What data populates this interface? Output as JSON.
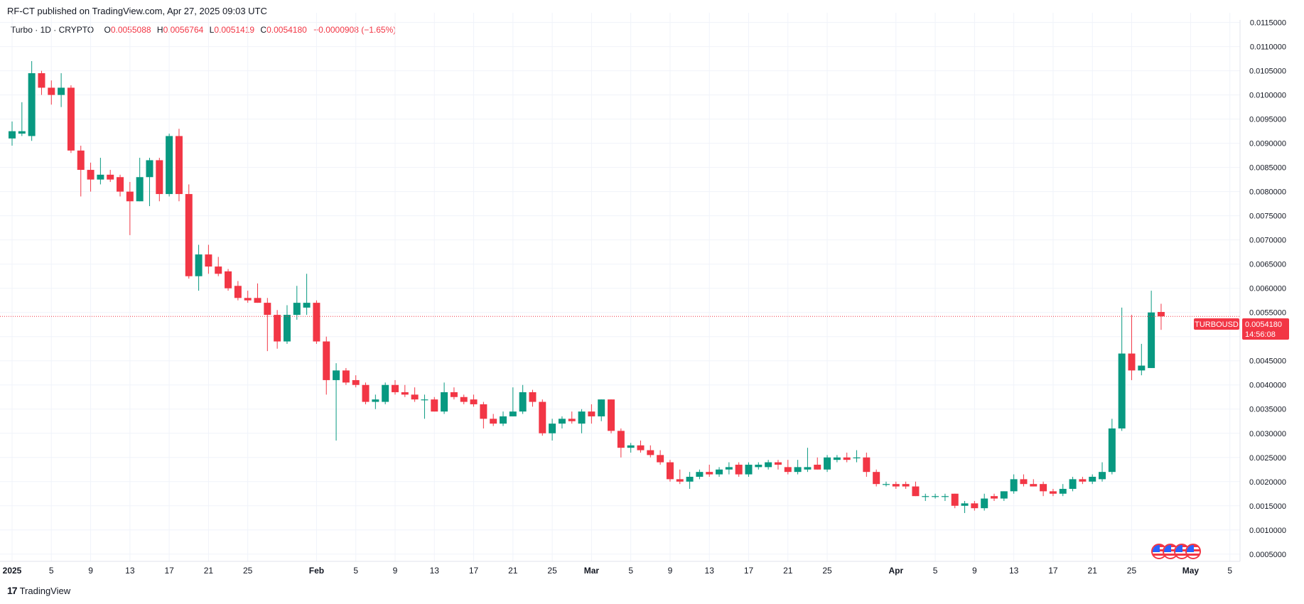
{
  "header": {
    "published": "RF-CT published on TradingView.com, Apr 27, 2025 09:03 UTC"
  },
  "legend": {
    "symbol": "Turbo · 1D · CRYPTO",
    "o_label": "O",
    "o_value": "0.0055088",
    "h_label": "H",
    "h_value": "0.0056764",
    "l_label": "L",
    "l_value": "0.0051419",
    "c_label": "C",
    "c_value": "0.0054180",
    "change": "−0.0000908 (−1.65%)"
  },
  "price_tag": {
    "ticker": "TURBOUSD",
    "price": "0.0054180",
    "countdown": "14:56:08"
  },
  "footer": {
    "brand": "TradingView",
    "logo_text": "17"
  },
  "colors": {
    "up": "#089981",
    "down": "#f23645",
    "grid": "#f0f3fa",
    "last_line": "#f23645"
  },
  "chart_data": {
    "type": "candlestick",
    "y_ticks": [
      "0.0115000",
      "0.0110000",
      "0.0105000",
      "0.0100000",
      "0.0095000",
      "0.0090000",
      "0.0085000",
      "0.0080000",
      "0.0075000",
      "0.0070000",
      "0.0065000",
      "0.0060000",
      "0.0055000",
      "0.0050000",
      "0.0045000",
      "0.0040000",
      "0.0035000",
      "0.0030000",
      "0.0025000",
      "0.0020000",
      "0.0015000",
      "0.0010000",
      "0.0005000"
    ],
    "ylim": [
      0.00035,
      0.0117
    ],
    "x_ticks": [
      {
        "label": "2025",
        "day": 0,
        "bold": true
      },
      {
        "label": "5",
        "day": 4
      },
      {
        "label": "9",
        "day": 8
      },
      {
        "label": "13",
        "day": 12
      },
      {
        "label": "17",
        "day": 16
      },
      {
        "label": "21",
        "day": 20
      },
      {
        "label": "25",
        "day": 24
      },
      {
        "label": "Feb",
        "day": 31,
        "bold": true
      },
      {
        "label": "5",
        "day": 35
      },
      {
        "label": "9",
        "day": 39
      },
      {
        "label": "13",
        "day": 43
      },
      {
        "label": "17",
        "day": 47
      },
      {
        "label": "21",
        "day": 51
      },
      {
        "label": "25",
        "day": 55
      },
      {
        "label": "Mar",
        "day": 59,
        "bold": true
      },
      {
        "label": "5",
        "day": 63
      },
      {
        "label": "9",
        "day": 67
      },
      {
        "label": "13",
        "day": 71
      },
      {
        "label": "17",
        "day": 75
      },
      {
        "label": "21",
        "day": 79
      },
      {
        "label": "25",
        "day": 83
      },
      {
        "label": "Apr",
        "day": 90,
        "bold": true
      },
      {
        "label": "5",
        "day": 94
      },
      {
        "label": "9",
        "day": 98
      },
      {
        "label": "13",
        "day": 102
      },
      {
        "label": "17",
        "day": 106
      },
      {
        "label": "21",
        "day": 110
      },
      {
        "label": "25",
        "day": 114
      },
      {
        "label": "May",
        "day": 120,
        "bold": true
      },
      {
        "label": "5",
        "day": 124
      }
    ],
    "last_price": 0.005418,
    "candles": [
      {
        "o": 0.0091,
        "h": 0.00945,
        "l": 0.00895,
        "c": 0.00925
      },
      {
        "o": 0.0092,
        "h": 0.00985,
        "l": 0.00915,
        "c": 0.00925
      },
      {
        "o": 0.00915,
        "h": 0.0107,
        "l": 0.00905,
        "c": 0.01045
      },
      {
        "o": 0.01045,
        "h": 0.0105,
        "l": 0.01,
        "c": 0.01015
      },
      {
        "o": 0.01015,
        "h": 0.0103,
        "l": 0.0098,
        "c": 0.01
      },
      {
        "o": 0.01,
        "h": 0.01045,
        "l": 0.00975,
        "c": 0.01015
      },
      {
        "o": 0.01015,
        "h": 0.0102,
        "l": 0.0088,
        "c": 0.00885
      },
      {
        "o": 0.00885,
        "h": 0.00895,
        "l": 0.0079,
        "c": 0.00845
      },
      {
        "o": 0.00845,
        "h": 0.0086,
        "l": 0.008,
        "c": 0.00825
      },
      {
        "o": 0.00825,
        "h": 0.0087,
        "l": 0.00815,
        "c": 0.00835
      },
      {
        "o": 0.00835,
        "h": 0.00845,
        "l": 0.0082,
        "c": 0.00825
      },
      {
        "o": 0.0083,
        "h": 0.00835,
        "l": 0.0079,
        "c": 0.008
      },
      {
        "o": 0.008,
        "h": 0.0082,
        "l": 0.0071,
        "c": 0.0078
      },
      {
        "o": 0.0078,
        "h": 0.0087,
        "l": 0.0078,
        "c": 0.0083
      },
      {
        "o": 0.0083,
        "h": 0.0087,
        "l": 0.0077,
        "c": 0.00865
      },
      {
        "o": 0.00865,
        "h": 0.0087,
        "l": 0.0078,
        "c": 0.00795
      },
      {
        "o": 0.00795,
        "h": 0.0092,
        "l": 0.0079,
        "c": 0.00915
      },
      {
        "o": 0.00915,
        "h": 0.0093,
        "l": 0.0078,
        "c": 0.00795
      },
      {
        "o": 0.00795,
        "h": 0.00815,
        "l": 0.0062,
        "c": 0.00625
      },
      {
        "o": 0.00625,
        "h": 0.0069,
        "l": 0.00595,
        "c": 0.0067
      },
      {
        "o": 0.0067,
        "h": 0.0069,
        "l": 0.0063,
        "c": 0.00645
      },
      {
        "o": 0.00645,
        "h": 0.00665,
        "l": 0.00625,
        "c": 0.0063
      },
      {
        "o": 0.00635,
        "h": 0.0064,
        "l": 0.00595,
        "c": 0.006
      },
      {
        "o": 0.00605,
        "h": 0.00615,
        "l": 0.00575,
        "c": 0.0058
      },
      {
        "o": 0.0058,
        "h": 0.00595,
        "l": 0.0057,
        "c": 0.00575
      },
      {
        "o": 0.0058,
        "h": 0.0061,
        "l": 0.0057,
        "c": 0.0057
      },
      {
        "o": 0.0057,
        "h": 0.0058,
        "l": 0.0047,
        "c": 0.00545
      },
      {
        "o": 0.00545,
        "h": 0.00555,
        "l": 0.00475,
        "c": 0.0049
      },
      {
        "o": 0.0049,
        "h": 0.00565,
        "l": 0.00485,
        "c": 0.00545
      },
      {
        "o": 0.00545,
        "h": 0.00605,
        "l": 0.00535,
        "c": 0.0057
      },
      {
        "o": 0.0056,
        "h": 0.0063,
        "l": 0.00545,
        "c": 0.0057
      },
      {
        "o": 0.0057,
        "h": 0.00575,
        "l": 0.00485,
        "c": 0.0049
      },
      {
        "o": 0.0049,
        "h": 0.005,
        "l": 0.0038,
        "c": 0.0041
      },
      {
        "o": 0.0041,
        "h": 0.00445,
        "l": 0.00285,
        "c": 0.0043
      },
      {
        "o": 0.0043,
        "h": 0.00435,
        "l": 0.004,
        "c": 0.00405
      },
      {
        "o": 0.0041,
        "h": 0.0042,
        "l": 0.00395,
        "c": 0.004
      },
      {
        "o": 0.004,
        "h": 0.00405,
        "l": 0.0036,
        "c": 0.00365
      },
      {
        "o": 0.00365,
        "h": 0.0038,
        "l": 0.0035,
        "c": 0.0037
      },
      {
        "o": 0.00365,
        "h": 0.00405,
        "l": 0.0036,
        "c": 0.004
      },
      {
        "o": 0.004,
        "h": 0.0041,
        "l": 0.0038,
        "c": 0.00385
      },
      {
        "o": 0.00385,
        "h": 0.004,
        "l": 0.00375,
        "c": 0.0038
      },
      {
        "o": 0.0038,
        "h": 0.00395,
        "l": 0.00365,
        "c": 0.0037
      },
      {
        "o": 0.0037,
        "h": 0.0038,
        "l": 0.0033,
        "c": 0.0037
      },
      {
        "o": 0.0037,
        "h": 0.00375,
        "l": 0.00345,
        "c": 0.00345
      },
      {
        "o": 0.00345,
        "h": 0.00405,
        "l": 0.0034,
        "c": 0.00385
      },
      {
        "o": 0.00385,
        "h": 0.00395,
        "l": 0.0037,
        "c": 0.00375
      },
      {
        "o": 0.00375,
        "h": 0.0038,
        "l": 0.0036,
        "c": 0.00365
      },
      {
        "o": 0.0037,
        "h": 0.0038,
        "l": 0.00355,
        "c": 0.0036
      },
      {
        "o": 0.0036,
        "h": 0.00365,
        "l": 0.0031,
        "c": 0.0033
      },
      {
        "o": 0.0033,
        "h": 0.0034,
        "l": 0.00315,
        "c": 0.0032
      },
      {
        "o": 0.0032,
        "h": 0.00345,
        "l": 0.00315,
        "c": 0.00335
      },
      {
        "o": 0.00335,
        "h": 0.00395,
        "l": 0.00335,
        "c": 0.00345
      },
      {
        "o": 0.00345,
        "h": 0.004,
        "l": 0.0034,
        "c": 0.00385
      },
      {
        "o": 0.00385,
        "h": 0.0039,
        "l": 0.00355,
        "c": 0.00365
      },
      {
        "o": 0.00365,
        "h": 0.0037,
        "l": 0.00295,
        "c": 0.003
      },
      {
        "o": 0.003,
        "h": 0.0033,
        "l": 0.00285,
        "c": 0.0032
      },
      {
        "o": 0.0032,
        "h": 0.00335,
        "l": 0.0031,
        "c": 0.0033
      },
      {
        "o": 0.0033,
        "h": 0.00345,
        "l": 0.0032,
        "c": 0.00325
      },
      {
        "o": 0.0032,
        "h": 0.0035,
        "l": 0.003,
        "c": 0.00345
      },
      {
        "o": 0.00345,
        "h": 0.0036,
        "l": 0.0032,
        "c": 0.00335
      },
      {
        "o": 0.00335,
        "h": 0.0037,
        "l": 0.00325,
        "c": 0.0037
      },
      {
        "o": 0.0037,
        "h": 0.0037,
        "l": 0.003,
        "c": 0.00305
      },
      {
        "o": 0.00305,
        "h": 0.0031,
        "l": 0.0025,
        "c": 0.0027
      },
      {
        "o": 0.0027,
        "h": 0.0028,
        "l": 0.0026,
        "c": 0.00275
      },
      {
        "o": 0.00275,
        "h": 0.00285,
        "l": 0.0026,
        "c": 0.00265
      },
      {
        "o": 0.00265,
        "h": 0.00275,
        "l": 0.0025,
        "c": 0.00255
      },
      {
        "o": 0.00255,
        "h": 0.00265,
        "l": 0.00235,
        "c": 0.0024
      },
      {
        "o": 0.0024,
        "h": 0.00245,
        "l": 0.002,
        "c": 0.00205
      },
      {
        "o": 0.00205,
        "h": 0.00225,
        "l": 0.00195,
        "c": 0.002
      },
      {
        "o": 0.002,
        "h": 0.0022,
        "l": 0.00185,
        "c": 0.0021
      },
      {
        "o": 0.0021,
        "h": 0.00225,
        "l": 0.00205,
        "c": 0.0022
      },
      {
        "o": 0.0022,
        "h": 0.00235,
        "l": 0.0021,
        "c": 0.00215
      },
      {
        "o": 0.00215,
        "h": 0.0023,
        "l": 0.0021,
        "c": 0.00225
      },
      {
        "o": 0.00225,
        "h": 0.0024,
        "l": 0.00215,
        "c": 0.0023
      },
      {
        "o": 0.00235,
        "h": 0.0024,
        "l": 0.0021,
        "c": 0.00215
      },
      {
        "o": 0.00215,
        "h": 0.0024,
        "l": 0.0021,
        "c": 0.00235
      },
      {
        "o": 0.0023,
        "h": 0.0024,
        "l": 0.00225,
        "c": 0.00235
      },
      {
        "o": 0.0023,
        "h": 0.00245,
        "l": 0.00225,
        "c": 0.0024
      },
      {
        "o": 0.0024,
        "h": 0.00245,
        "l": 0.00225,
        "c": 0.00235
      },
      {
        "o": 0.0023,
        "h": 0.00245,
        "l": 0.00215,
        "c": 0.0022
      },
      {
        "o": 0.0022,
        "h": 0.00245,
        "l": 0.00215,
        "c": 0.0023
      },
      {
        "o": 0.00225,
        "h": 0.0027,
        "l": 0.0022,
        "c": 0.0023
      },
      {
        "o": 0.00235,
        "h": 0.0025,
        "l": 0.00225,
        "c": 0.00225
      },
      {
        "o": 0.00225,
        "h": 0.00255,
        "l": 0.0022,
        "c": 0.0025
      },
      {
        "o": 0.00245,
        "h": 0.00255,
        "l": 0.0024,
        "c": 0.0025
      },
      {
        "o": 0.0025,
        "h": 0.0026,
        "l": 0.0024,
        "c": 0.00245
      },
      {
        "o": 0.0025,
        "h": 0.00265,
        "l": 0.0024,
        "c": 0.0025
      },
      {
        "o": 0.0025,
        "h": 0.0026,
        "l": 0.0021,
        "c": 0.0022
      },
      {
        "o": 0.0022,
        "h": 0.00225,
        "l": 0.0019,
        "c": 0.00195
      },
      {
        "o": 0.00195,
        "h": 0.002,
        "l": 0.0019,
        "c": 0.00195
      },
      {
        "o": 0.00195,
        "h": 0.002,
        "l": 0.00185,
        "c": 0.0019
      },
      {
        "o": 0.00195,
        "h": 0.002,
        "l": 0.00185,
        "c": 0.0019
      },
      {
        "o": 0.0019,
        "h": 0.002,
        "l": 0.0017,
        "c": 0.0017
      },
      {
        "o": 0.0017,
        "h": 0.00175,
        "l": 0.0016,
        "c": 0.0017
      },
      {
        "o": 0.0017,
        "h": 0.00175,
        "l": 0.00165,
        "c": 0.0017
      },
      {
        "o": 0.0017,
        "h": 0.00175,
        "l": 0.0016,
        "c": 0.0017
      },
      {
        "o": 0.00175,
        "h": 0.00175,
        "l": 0.00145,
        "c": 0.0015
      },
      {
        "o": 0.0015,
        "h": 0.0016,
        "l": 0.00135,
        "c": 0.00155
      },
      {
        "o": 0.00155,
        "h": 0.0016,
        "l": 0.0014,
        "c": 0.00145
      },
      {
        "o": 0.00145,
        "h": 0.00175,
        "l": 0.0014,
        "c": 0.00165
      },
      {
        "o": 0.0017,
        "h": 0.00175,
        "l": 0.0016,
        "c": 0.00165
      },
      {
        "o": 0.00165,
        "h": 0.0018,
        "l": 0.0016,
        "c": 0.0018
      },
      {
        "o": 0.0018,
        "h": 0.00215,
        "l": 0.00175,
        "c": 0.00205
      },
      {
        "o": 0.00205,
        "h": 0.00215,
        "l": 0.0019,
        "c": 0.00195
      },
      {
        "o": 0.00195,
        "h": 0.00205,
        "l": 0.0019,
        "c": 0.0019
      },
      {
        "o": 0.00195,
        "h": 0.002,
        "l": 0.0017,
        "c": 0.0018
      },
      {
        "o": 0.0018,
        "h": 0.00185,
        "l": 0.0017,
        "c": 0.00175
      },
      {
        "o": 0.00175,
        "h": 0.00195,
        "l": 0.0017,
        "c": 0.00185
      },
      {
        "o": 0.00185,
        "h": 0.0021,
        "l": 0.0018,
        "c": 0.00205
      },
      {
        "o": 0.00205,
        "h": 0.0021,
        "l": 0.00195,
        "c": 0.002
      },
      {
        "o": 0.002,
        "h": 0.00215,
        "l": 0.00195,
        "c": 0.0021
      },
      {
        "o": 0.00205,
        "h": 0.0024,
        "l": 0.002,
        "c": 0.0022
      },
      {
        "o": 0.0022,
        "h": 0.0033,
        "l": 0.00215,
        "c": 0.0031
      },
      {
        "o": 0.0031,
        "h": 0.0056,
        "l": 0.00305,
        "c": 0.00465
      },
      {
        "o": 0.00465,
        "h": 0.00545,
        "l": 0.0041,
        "c": 0.0043
      },
      {
        "o": 0.0043,
        "h": 0.00485,
        "l": 0.0042,
        "c": 0.0044
      },
      {
        "o": 0.00435,
        "h": 0.00595,
        "l": 0.00435,
        "c": 0.0055
      },
      {
        "o": 0.00551,
        "h": 0.00568,
        "l": 0.00514,
        "c": 0.00542
      }
    ]
  }
}
